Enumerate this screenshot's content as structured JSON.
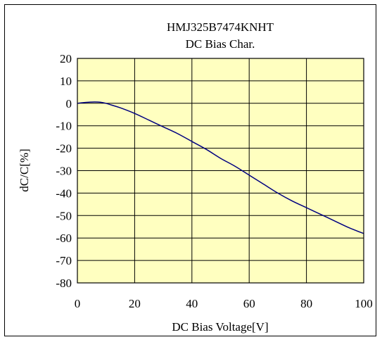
{
  "chart_data": {
    "type": "line",
    "title": "HMJ325B7474KNHT",
    "subtitle": "DC Bias Char.",
    "xlabel": "DC Bias Voltage[V]",
    "ylabel": "dC/C[%]",
    "xlim": [
      0,
      100
    ],
    "ylim": [
      -80,
      20
    ],
    "x_ticks": [
      "0",
      "20",
      "40",
      "60",
      "80",
      "100"
    ],
    "y_ticks": [
      "20",
      "10",
      "0",
      "-10",
      "-20",
      "-30",
      "-40",
      "-50",
      "-60",
      "-70",
      "-80"
    ],
    "grid": true,
    "plot_background": "#ffffc0",
    "series": [
      {
        "color": "#000080",
        "x": [
          0,
          2,
          4,
          6,
          8,
          10,
          12,
          15,
          20,
          25,
          30,
          35,
          40,
          45,
          50,
          55,
          60,
          65,
          70,
          75,
          80,
          85,
          90,
          95,
          100
        ],
        "y": [
          0,
          0.3,
          0.5,
          0.6,
          0.5,
          0,
          -0.8,
          -2,
          -4.5,
          -7.5,
          -10.5,
          -13.5,
          -17,
          -20.5,
          -24.5,
          -28,
          -32,
          -36,
          -40,
          -43.5,
          -46.5,
          -49.5,
          -52.5,
          -55.5,
          -58
        ]
      }
    ]
  }
}
